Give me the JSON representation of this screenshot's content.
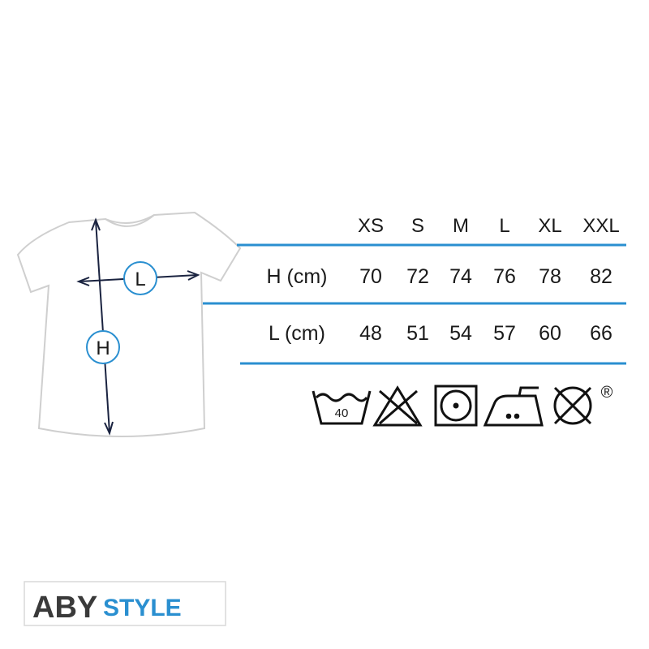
{
  "diagram": {
    "width_label": "L",
    "height_label": "H"
  },
  "table": {
    "header": [
      "XS",
      "S",
      "M",
      "L",
      "XL",
      "XXL"
    ],
    "rows": [
      [
        "H (cm)",
        70,
        72,
        74,
        76,
        78,
        82
      ],
      [
        "L (cm)",
        48,
        51,
        54,
        57,
        60,
        66
      ]
    ]
  },
  "care": {
    "wash_temp": "40",
    "registered": "®"
  },
  "brand": {
    "aby": "ABY",
    "style": "STYLE"
  }
}
